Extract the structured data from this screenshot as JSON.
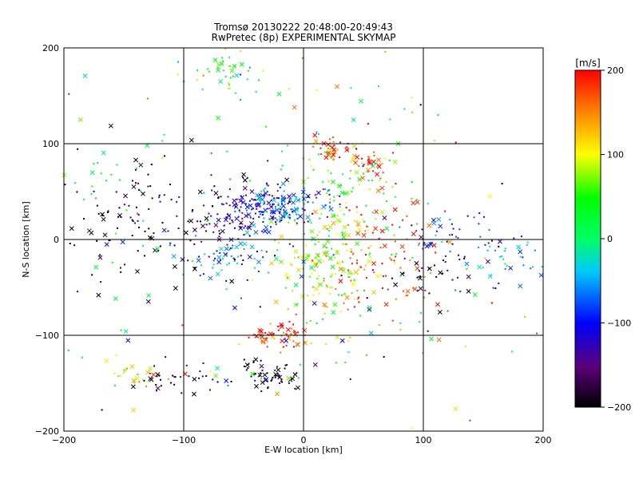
{
  "chart_data": {
    "type": "scatter",
    "title": "Tromsø 20130222 20:48:00-20:49:43",
    "subtitle": "RwPretec (8p) EXPERIMENTAL SKYMAP",
    "xlabel": "E-W location [km]",
    "ylabel": "N-S location [km]",
    "xlim": [
      -200,
      200
    ],
    "ylim": [
      -200,
      200
    ],
    "xticks": [
      -200,
      -100,
      0,
      100,
      200
    ],
    "yticks": [
      -200,
      -100,
      0,
      100,
      200
    ],
    "grid": true,
    "colorbar": {
      "label": "[m/s]",
      "range": [
        -200,
        200
      ],
      "ticks": [
        -200,
        -100,
        0,
        100,
        200
      ],
      "colormap": "rainbow (black-purple-blue-cyan-green-yellow-red)"
    },
    "markers": "crosses and small dots colored by velocity",
    "clusters": [
      {
        "x": -40,
        "y": 30,
        "vel": -120,
        "spread": [
          20,
          12
        ],
        "count": 160
      },
      {
        "x": -10,
        "y": 35,
        "vel": -60,
        "spread": [
          18,
          10
        ],
        "count": 90
      },
      {
        "x": -25,
        "y": -100,
        "vel": 190,
        "spread": [
          12,
          6
        ],
        "count": 60
      },
      {
        "x": 25,
        "y": 95,
        "vel": 185,
        "spread": [
          10,
          6
        ],
        "count": 35
      },
      {
        "x": 55,
        "y": 80,
        "vel": 190,
        "spread": [
          10,
          6
        ],
        "count": 25
      },
      {
        "x": -65,
        "y": 175,
        "vel": 40,
        "spread": [
          20,
          12
        ],
        "count": 40
      },
      {
        "x": -30,
        "y": -140,
        "vel": -200,
        "spread": [
          14,
          8
        ],
        "count": 55
      },
      {
        "x": -105,
        "y": -145,
        "vel": -200,
        "spread": [
          18,
          8
        ],
        "count": 35
      },
      {
        "x": -140,
        "y": -140,
        "vel": 110,
        "spread": [
          10,
          6
        ],
        "count": 20
      },
      {
        "x": -130,
        "y": 20,
        "vel": -200,
        "spread": [
          45,
          30
        ],
        "count": 140
      },
      {
        "x": 15,
        "y": -30,
        "vel": 90,
        "spread": [
          25,
          35
        ],
        "count": 160
      },
      {
        "x": 60,
        "y": -20,
        "vel": 180,
        "spread": [
          30,
          35
        ],
        "count": 110
      },
      {
        "x": 130,
        "y": 5,
        "vel": -90,
        "spread": [
          25,
          12
        ],
        "count": 45
      },
      {
        "x": 120,
        "y": -30,
        "vel": -190,
        "spread": [
          25,
          12
        ],
        "count": 35
      },
      {
        "x": 165,
        "y": -25,
        "vel": -40,
        "spread": [
          15,
          15
        ],
        "count": 35
      },
      {
        "x": -60,
        "y": -15,
        "vel": -70,
        "spread": [
          25,
          12
        ],
        "count": 60
      },
      {
        "x": 30,
        "y": 45,
        "vel": 60,
        "spread": [
          30,
          25
        ],
        "count": 80
      },
      {
        "x": -175,
        "y": 65,
        "vel": 10,
        "spread": [
          15,
          15
        ],
        "count": 15
      },
      {
        "x": 0,
        "y": 0,
        "vel": 0,
        "spread": [
          130,
          110
        ],
        "count": 220
      }
    ]
  }
}
